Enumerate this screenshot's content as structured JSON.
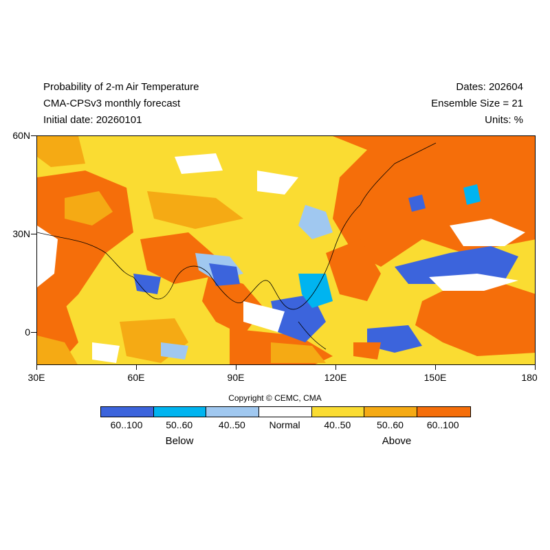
{
  "header": {
    "title_line1": "Probability of 2-m Air Temperature",
    "title_line2": "CMA-CPSv3 monthly forecast",
    "title_line3": "Initial date: 20260101",
    "dates": "Dates: 202604",
    "ensemble": "Ensemble Size = 21",
    "units": "Units: %"
  },
  "map": {
    "lat_ticks": [
      "60N",
      "30N",
      "0"
    ],
    "lon_ticks": [
      "30E",
      "60E",
      "90E",
      "120E",
      "150E",
      "180"
    ],
    "lat_range": [
      -10,
      60
    ],
    "lon_range": [
      30,
      180
    ],
    "dominant_category": "Above 60..100"
  },
  "copyright": "Copyright © CEMC, CMA",
  "legend": {
    "categories": [
      {
        "label": "60..100",
        "color": "#3c64dc",
        "group": "Below"
      },
      {
        "label": "50..60",
        "color": "#00b4f0",
        "group": "Below"
      },
      {
        "label": "40..50",
        "color": "#a0c8f0",
        "group": "Below"
      },
      {
        "label": "Normal",
        "color": "#ffffff",
        "group": "Normal"
      },
      {
        "label": "40..50",
        "color": "#fadc32",
        "group": "Above"
      },
      {
        "label": "50..60",
        "color": "#f5aa14",
        "group": "Above"
      },
      {
        "label": "60..100",
        "color": "#f56e0a",
        "group": "Above"
      }
    ],
    "below_label": "Below",
    "above_label": "Above"
  }
}
